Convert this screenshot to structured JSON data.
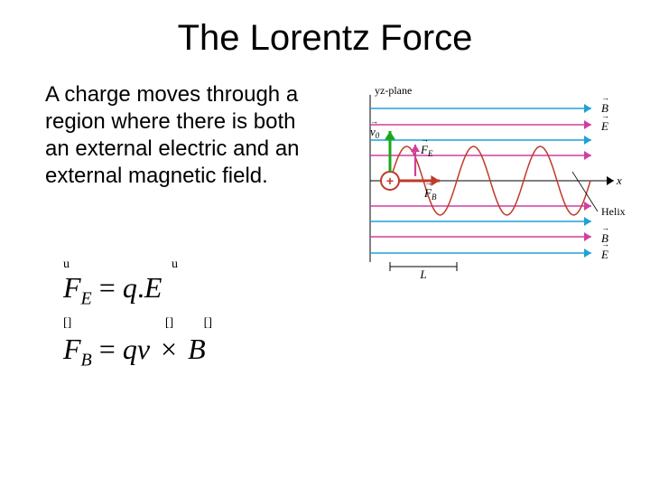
{
  "title": "The Lorentz Force",
  "bodyText": "A charge moves through a region where there is both an external electric and an external magnetic field.",
  "equations": {
    "fe_lhs": "F",
    "fe_sub": "E",
    "fe_rhs_q": "q",
    "fe_rhs_dot": ".",
    "fe_rhs_E": "E",
    "fb_lhs": "F",
    "fb_sub": "B",
    "fb_rhs_q": "q",
    "fb_rhs_v": "v",
    "fb_rhs_cross": "×",
    "fb_rhs_B": "B",
    "glyph_top": "u",
    "glyph_mid": "[]"
  },
  "diagram": {
    "yz_label": "yz-plane",
    "x_label": "x",
    "v0_label": "v",
    "v0_sub": "0",
    "FE_label": "F",
    "FE_sub": "E",
    "FB_label": "F",
    "FB_sub": "B",
    "B_label": "B",
    "E_label": "E",
    "helix_label": "Helix",
    "L_label": "L",
    "plus": "+",
    "colors": {
      "axis": "#000000",
      "efield": "#d13ea2",
      "bfield": "#1fa2d6",
      "v0": "#18a818",
      "fb": "#c0392b",
      "helix": "#c0392b",
      "plus_fill": "#ffffff",
      "plus_stroke": "#c0392b",
      "plus_text": "#c0392b",
      "label": "#000000"
    },
    "helix_cycles": 3,
    "helix_amp": 38,
    "helix_wavelength": 74
  }
}
